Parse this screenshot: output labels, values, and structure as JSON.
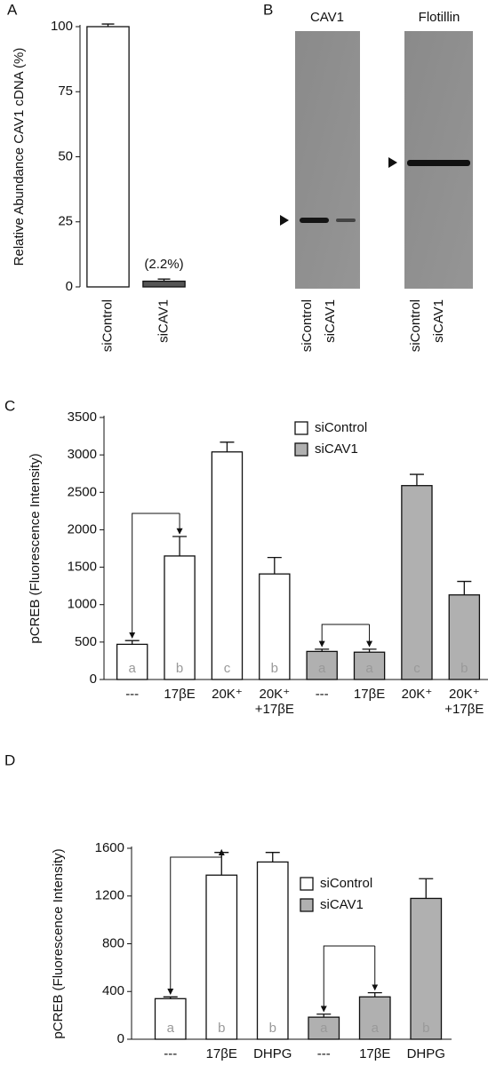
{
  "blot": {
    "panel_label": "B",
    "panels": [
      {
        "title": "CAV1",
        "lanes": [
          "siControl",
          "siCAV1"
        ]
      },
      {
        "title": "Flotillin",
        "lanes": [
          "siControl",
          "siCAV1"
        ]
      }
    ]
  },
  "chart_data": [
    {
      "panel_label": "A",
      "type": "bar",
      "ylabel": "Relative Abundance CAV1 cDNA (%)",
      "categories": [
        "siControl",
        "siCAV1"
      ],
      "values": [
        100,
        2.2
      ],
      "errors": [
        1,
        0.8
      ],
      "colors": [
        "#ffffff",
        "#555555"
      ],
      "value_labels": [
        null,
        "(2.2%)"
      ],
      "ylim": [
        0,
        100
      ],
      "yticks": [
        0,
        25,
        50,
        75,
        100
      ]
    },
    {
      "panel_label": "C",
      "type": "bar",
      "ylabel": "pCREB (Fluorescence Intensity)",
      "categories": [
        "---",
        "17βE",
        "20K⁺",
        "20K⁺\n+17βE",
        "---",
        "17βE",
        "20K⁺",
        "20K⁺\n+17βE"
      ],
      "series": [
        {
          "name": "siControl",
          "color": "#ffffff",
          "values": [
            470,
            1650,
            3040,
            1410,
            null,
            null,
            null,
            null
          ],
          "errors": [
            50,
            260,
            130,
            220,
            null,
            null,
            null,
            null
          ]
        },
        {
          "name": "siCAV1",
          "color": "#b0b0b0",
          "values": [
            null,
            null,
            null,
            null,
            375,
            365,
            2590,
            1130
          ],
          "errors": [
            null,
            null,
            null,
            null,
            30,
            40,
            150,
            180
          ]
        }
      ],
      "letters": [
        "a",
        "b",
        "c",
        "b",
        "a",
        "a",
        "c",
        "b"
      ],
      "ylim": [
        0,
        3500
      ],
      "yticks": [
        0,
        500,
        1000,
        1500,
        2000,
        2500,
        3000,
        3500
      ],
      "legend": "top-right"
    },
    {
      "panel_label": "D",
      "type": "bar",
      "ylabel": "pCREB (Fluorescence Intensity)",
      "categories": [
        "---",
        "17βE",
        "DHPG",
        "---",
        "17βE",
        "DHPG"
      ],
      "series": [
        {
          "name": "siControl",
          "color": "#ffffff",
          "values": [
            340,
            1375,
            1485,
            null,
            null,
            null
          ],
          "errors": [
            15,
            190,
            80,
            null,
            null,
            null
          ]
        },
        {
          "name": "siCAV1",
          "color": "#b0b0b0",
          "values": [
            null,
            null,
            null,
            185,
            355,
            1180
          ],
          "errors": [
            null,
            null,
            null,
            25,
            35,
            165
          ]
        }
      ],
      "letters": [
        "a",
        "b",
        "b",
        "a",
        "a",
        "b"
      ],
      "ylim": [
        0,
        1600
      ],
      "yticks": [
        0,
        400,
        800,
        1200,
        1600
      ],
      "legend": "top-right"
    }
  ]
}
